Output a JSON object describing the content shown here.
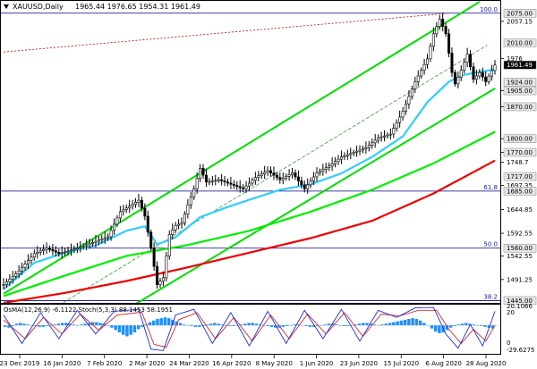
{
  "header": {
    "symbol": "XAUUSD,Daily",
    "ohlc": "1965.44 1976.65 1954.31 1961.49"
  },
  "indicator_label": "OsMA(12,26,9) -6.1122  Stoch(5,3,3) 88.1453 58.1951",
  "colors": {
    "price_bars": "#000000",
    "ema_fast": "#33ccff",
    "ema_mid": "#00ee00",
    "ema_slow": "#ee0000",
    "channel": "#00dd00",
    "fib_lines": "#00008b",
    "red_dotted": "#cc0000",
    "osma_bars": "#1e90ff",
    "stoch_main": "#1f2bd6",
    "stoch_signal": "#d12a2a"
  },
  "chart_data": {
    "type": "candlestick",
    "title": "XAUUSD,Daily",
    "ylim": [
      1440,
      2102
    ],
    "x_ticks": [
      "23 Dec 2019",
      "16 Jan 2020",
      "7 Feb 2020",
      "2 Mar 2020",
      "24 Mar 2020",
      "16 Apr 2020",
      "8 May 2020",
      "1 Jun 2020",
      "23 Jun 2020",
      "15 Jul 2020",
      "6 Aug 2020",
      "28 Aug 2020"
    ],
    "y_ticks": [
      2057.15,
      1976.0,
      1905.0,
      1870.0,
      1800.0,
      1770.0,
      1748.7,
      1697.35,
      1644.85,
      1592.55,
      1542.55,
      1491.25
    ],
    "price_levels": [
      2075.0,
      2010.0,
      1961.49,
      1924.0,
      1905.0,
      1870.0,
      1800.0,
      1770.0,
      1717.0,
      1685.0,
      1560.0,
      1445.0
    ],
    "fib_levels": [
      {
        "label": "100.0",
        "value": 2075.0
      },
      {
        "label": "61.8",
        "value": 1685.0
      },
      {
        "label": "50.0",
        "value": 1560.0
      },
      {
        "label": "38.2",
        "value": 1445.0
      }
    ],
    "close_path": [
      {
        "x": 0,
        "y": 1480
      },
      {
        "x": 5,
        "y": 1510
      },
      {
        "x": 10,
        "y": 1548
      },
      {
        "x": 14,
        "y": 1560
      },
      {
        "x": 18,
        "y": 1548
      },
      {
        "x": 22,
        "y": 1556
      },
      {
        "x": 26,
        "y": 1565
      },
      {
        "x": 30,
        "y": 1575
      },
      {
        "x": 34,
        "y": 1585
      },
      {
        "x": 38,
        "y": 1640
      },
      {
        "x": 42,
        "y": 1656
      },
      {
        "x": 44,
        "y": 1665
      },
      {
        "x": 46,
        "y": 1630
      },
      {
        "x": 48,
        "y": 1560
      },
      {
        "x": 50,
        "y": 1480
      },
      {
        "x": 52,
        "y": 1495
      },
      {
        "x": 54,
        "y": 1590
      },
      {
        "x": 56,
        "y": 1610
      },
      {
        "x": 58,
        "y": 1615
      },
      {
        "x": 60,
        "y": 1655
      },
      {
        "x": 62,
        "y": 1690
      },
      {
        "x": 64,
        "y": 1735
      },
      {
        "x": 66,
        "y": 1705
      },
      {
        "x": 70,
        "y": 1710
      },
      {
        "x": 74,
        "y": 1700
      },
      {
        "x": 78,
        "y": 1690
      },
      {
        "x": 82,
        "y": 1715
      },
      {
        "x": 86,
        "y": 1730
      },
      {
        "x": 90,
        "y": 1710
      },
      {
        "x": 94,
        "y": 1725
      },
      {
        "x": 98,
        "y": 1690
      },
      {
        "x": 102,
        "y": 1725
      },
      {
        "x": 106,
        "y": 1740
      },
      {
        "x": 110,
        "y": 1760
      },
      {
        "x": 114,
        "y": 1770
      },
      {
        "x": 118,
        "y": 1780
      },
      {
        "x": 122,
        "y": 1802
      },
      {
        "x": 126,
        "y": 1810
      },
      {
        "x": 130,
        "y": 1860
      },
      {
        "x": 134,
        "y": 1925
      },
      {
        "x": 138,
        "y": 1975
      },
      {
        "x": 140,
        "y": 2030
      },
      {
        "x": 142,
        "y": 2062
      },
      {
        "x": 144,
        "y": 2030
      },
      {
        "x": 146,
        "y": 1945
      },
      {
        "x": 147,
        "y": 1920
      },
      {
        "x": 149,
        "y": 1950
      },
      {
        "x": 151,
        "y": 1985
      },
      {
        "x": 153,
        "y": 1930
      },
      {
        "x": 155,
        "y": 1945
      },
      {
        "x": 157,
        "y": 1925
      },
      {
        "x": 160,
        "y": 1961.49
      }
    ],
    "ema_fast_path": [
      {
        "x": 0,
        "y": 1470
      },
      {
        "x": 10,
        "y": 1528
      },
      {
        "x": 20,
        "y": 1550
      },
      {
        "x": 30,
        "y": 1566
      },
      {
        "x": 40,
        "y": 1598
      },
      {
        "x": 46,
        "y": 1608
      },
      {
        "x": 50,
        "y": 1568
      },
      {
        "x": 56,
        "y": 1584
      },
      {
        "x": 64,
        "y": 1628
      },
      {
        "x": 72,
        "y": 1648
      },
      {
        "x": 80,
        "y": 1666
      },
      {
        "x": 90,
        "y": 1688
      },
      {
        "x": 100,
        "y": 1700
      },
      {
        "x": 110,
        "y": 1724
      },
      {
        "x": 120,
        "y": 1760
      },
      {
        "x": 130,
        "y": 1805
      },
      {
        "x": 138,
        "y": 1880
      },
      {
        "x": 145,
        "y": 1925
      },
      {
        "x": 150,
        "y": 1940
      },
      {
        "x": 155,
        "y": 1946
      },
      {
        "x": 160,
        "y": 1952
      }
    ],
    "ema_mid_path": [
      {
        "x": 0,
        "y": 1455
      },
      {
        "x": 20,
        "y": 1500
      },
      {
        "x": 40,
        "y": 1543
      },
      {
        "x": 60,
        "y": 1567
      },
      {
        "x": 80,
        "y": 1598
      },
      {
        "x": 100,
        "y": 1640
      },
      {
        "x": 120,
        "y": 1688
      },
      {
        "x": 140,
        "y": 1746
      },
      {
        "x": 160,
        "y": 1815
      }
    ],
    "ema_slow_path": [
      {
        "x": 0,
        "y": 1440
      },
      {
        "x": 20,
        "y": 1462
      },
      {
        "x": 40,
        "y": 1488
      },
      {
        "x": 60,
        "y": 1518
      },
      {
        "x": 80,
        "y": 1550
      },
      {
        "x": 100,
        "y": 1582
      },
      {
        "x": 120,
        "y": 1620
      },
      {
        "x": 140,
        "y": 1680
      },
      {
        "x": 160,
        "y": 1752
      }
    ],
    "channel_lines": [
      {
        "from": {
          "x": 0,
          "y": 1460
        },
        "to": {
          "x": 155,
          "y": 2100
        }
      },
      {
        "from": {
          "x": 30,
          "y": 1385
        },
        "to": {
          "x": 160,
          "y": 1910
        }
      }
    ],
    "red_dotted_line": {
      "from": {
        "x": 0,
        "y": 1990
      },
      "to": {
        "x": 145,
        "y": 2075
      }
    },
    "indicator": {
      "type": "histogram+line",
      "ylim": [
        -35,
        25
      ],
      "y_ticks": [
        20.1066,
        20,
        0,
        -29.6275
      ],
      "osma": [
        -2,
        -3,
        -1,
        2,
        3,
        2,
        1,
        0,
        -1,
        -2,
        -2,
        -1,
        0,
        1,
        2,
        3,
        3,
        2,
        1,
        0,
        1,
        2,
        3,
        4,
        4,
        3,
        2,
        0,
        -3,
        -6,
        -9,
        -12,
        -14,
        -12,
        -9,
        -5,
        -2,
        1,
        4,
        6,
        8,
        9,
        10,
        9,
        7,
        5,
        3,
        1,
        0,
        -1,
        -2,
        -2,
        -1,
        1,
        2,
        3,
        2,
        1,
        0,
        -1,
        -1,
        0,
        1,
        2,
        3,
        3,
        2,
        1,
        0,
        -1,
        -2,
        -3,
        -3,
        -2,
        -1,
        0,
        1,
        1,
        0,
        -1,
        -2,
        -2,
        -1,
        0,
        1,
        2,
        2,
        1,
        0,
        -1,
        -1,
        0,
        1,
        2,
        3,
        3,
        2,
        1,
        0,
        1,
        2,
        3,
        4,
        5,
        6,
        7,
        8,
        9,
        8,
        6,
        3,
        0,
        -4,
        -8,
        -10,
        -9,
        -6,
        -3,
        -1,
        1,
        2,
        3,
        2,
        1,
        0,
        -1,
        -2,
        -3,
        -4
      ],
      "stoch_main_path": [
        {
          "x": 0,
          "y": 80
        },
        {
          "x": 6,
          "y": 20
        },
        {
          "x": 12,
          "y": 85
        },
        {
          "x": 18,
          "y": 30
        },
        {
          "x": 24,
          "y": 90
        },
        {
          "x": 30,
          "y": 40
        },
        {
          "x": 36,
          "y": 88
        },
        {
          "x": 44,
          "y": 92
        },
        {
          "x": 48,
          "y": 8
        },
        {
          "x": 52,
          "y": 5
        },
        {
          "x": 56,
          "y": 80
        },
        {
          "x": 62,
          "y": 92
        },
        {
          "x": 68,
          "y": 20
        },
        {
          "x": 74,
          "y": 85
        },
        {
          "x": 80,
          "y": 15
        },
        {
          "x": 86,
          "y": 88
        },
        {
          "x": 92,
          "y": 20
        },
        {
          "x": 98,
          "y": 90
        },
        {
          "x": 104,
          "y": 30
        },
        {
          "x": 110,
          "y": 92
        },
        {
          "x": 116,
          "y": 25
        },
        {
          "x": 122,
          "y": 90
        },
        {
          "x": 128,
          "y": 75
        },
        {
          "x": 134,
          "y": 95
        },
        {
          "x": 140,
          "y": 96
        },
        {
          "x": 144,
          "y": 40
        },
        {
          "x": 148,
          "y": 10
        },
        {
          "x": 152,
          "y": 60
        },
        {
          "x": 156,
          "y": 15
        },
        {
          "x": 160,
          "y": 88
        }
      ],
      "stoch_signal_path": [
        {
          "x": 0,
          "y": 70
        },
        {
          "x": 7,
          "y": 30
        },
        {
          "x": 13,
          "y": 75
        },
        {
          "x": 19,
          "y": 40
        },
        {
          "x": 25,
          "y": 82
        },
        {
          "x": 31,
          "y": 48
        },
        {
          "x": 37,
          "y": 80
        },
        {
          "x": 45,
          "y": 86
        },
        {
          "x": 49,
          "y": 18
        },
        {
          "x": 53,
          "y": 12
        },
        {
          "x": 57,
          "y": 70
        },
        {
          "x": 63,
          "y": 85
        },
        {
          "x": 69,
          "y": 30
        },
        {
          "x": 75,
          "y": 75
        },
        {
          "x": 81,
          "y": 25
        },
        {
          "x": 87,
          "y": 80
        },
        {
          "x": 93,
          "y": 30
        },
        {
          "x": 99,
          "y": 82
        },
        {
          "x": 105,
          "y": 40
        },
        {
          "x": 111,
          "y": 85
        },
        {
          "x": 117,
          "y": 35
        },
        {
          "x": 123,
          "y": 82
        },
        {
          "x": 129,
          "y": 78
        },
        {
          "x": 135,
          "y": 90
        },
        {
          "x": 141,
          "y": 90
        },
        {
          "x": 145,
          "y": 50
        },
        {
          "x": 149,
          "y": 20
        },
        {
          "x": 153,
          "y": 50
        },
        {
          "x": 157,
          "y": 25
        },
        {
          "x": 160,
          "y": 58
        }
      ]
    }
  }
}
